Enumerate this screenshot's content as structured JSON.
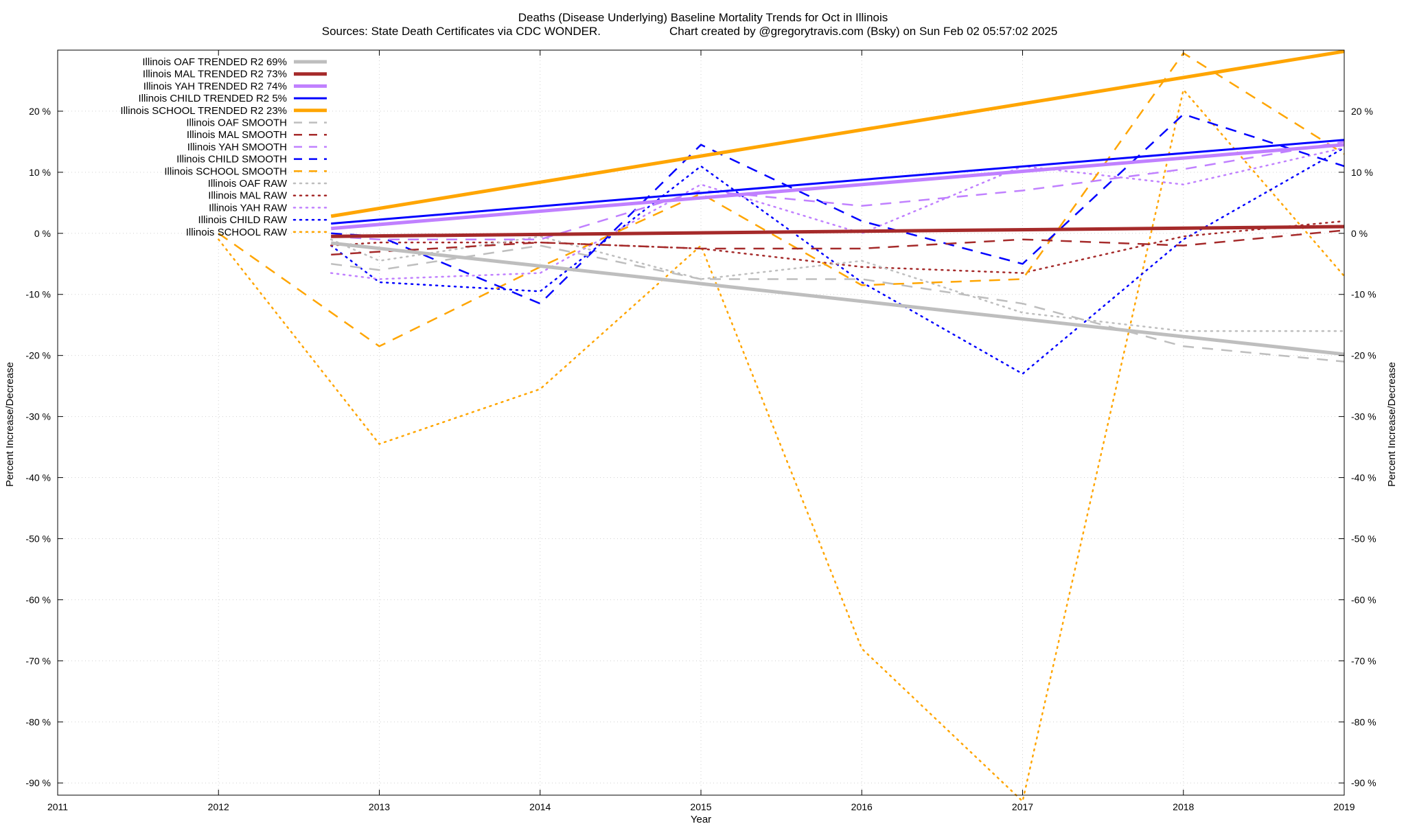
{
  "chart_data": {
    "type": "line",
    "title": "Deaths (Disease Underlying)  Baseline Mortality Trends for Oct in Illinois",
    "subtitle_left": "Sources: State Death Certificates via CDC WONDER.",
    "subtitle_right": "Chart created by @gregorytravis.com (Bsky) on Sun Feb 02 05:57:02 2025",
    "xlabel": "Year",
    "ylabel": "Percent Increase/Decrease",
    "ylabel_right": "Percent Increase/Decrease",
    "xlim": [
      2011,
      2019
    ],
    "ylim": [
      -92,
      30
    ],
    "x_ticks": [
      "2011",
      "2012",
      "2013",
      "2014",
      "2015",
      "2016",
      "2017",
      "2018",
      "2019"
    ],
    "y_ticks": [
      "20 %",
      "10 %",
      "0 %",
      "-10 %",
      "-20 %",
      "-30 %",
      "-40 %",
      "-50 %",
      "-60 %",
      "-70 %",
      "-80 %",
      "-90 %"
    ],
    "legend_position": "top-left",
    "series": [
      {
        "name": "Illinois OAF TRENDED R2  69%",
        "color": "#bebebe",
        "style": "solid",
        "width": 5,
        "x": [
          2012.7,
          2019
        ],
        "values": [
          -1.6,
          -19.8
        ]
      },
      {
        "name": "Illinois MAL TRENDED R2  73%",
        "color": "#a52a2a",
        "style": "solid",
        "width": 5,
        "x": [
          2012.7,
          2019
        ],
        "values": [
          -0.5,
          1.1
        ]
      },
      {
        "name": "Illinois YAH TRENDED R2  74%",
        "color": "#c080ff",
        "style": "solid",
        "width": 5,
        "x": [
          2012.7,
          2019
        ],
        "values": [
          0.8,
          14.5
        ]
      },
      {
        "name": "Illinois CHILD TRENDED R2   5%",
        "color": "#0000ff",
        "style": "solid",
        "width": 3,
        "x": [
          2012.7,
          2019
        ],
        "values": [
          1.6,
          15.3
        ]
      },
      {
        "name": "Illinois SCHOOL TRENDED R2  23%",
        "color": "#ffa500",
        "style": "solid",
        "width": 5,
        "x": [
          2012.7,
          2019
        ],
        "values": [
          2.8,
          29.8
        ]
      },
      {
        "name": "Illinois OAF SMOOTH",
        "color": "#bebebe",
        "style": "dashed",
        "width": 2.5,
        "x": [
          2012.7,
          2013,
          2014,
          2015,
          2016,
          2017,
          2018,
          2019
        ],
        "values": [
          -5.0,
          -6.0,
          -2.0,
          -7.5,
          -7.5,
          -11.5,
          -18.5,
          -21.0
        ]
      },
      {
        "name": "Illinois MAL SMOOTH",
        "color": "#a52a2a",
        "style": "dashed",
        "width": 2.5,
        "x": [
          2012.7,
          2013,
          2014,
          2015,
          2016,
          2017,
          2018,
          2019
        ],
        "values": [
          -3.5,
          -3.0,
          -1.5,
          -2.5,
          -2.5,
          -1.0,
          -2.0,
          0.5
        ]
      },
      {
        "name": "Illinois YAH SMOOTH",
        "color": "#c080ff",
        "style": "dashed",
        "width": 2.5,
        "x": [
          2012.7,
          2013,
          2014,
          2015,
          2016,
          2017,
          2018,
          2019
        ],
        "values": [
          -0.5,
          -1.0,
          -1.0,
          7.0,
          4.5,
          7.0,
          10.5,
          15.0
        ]
      },
      {
        "name": "Illinois CHILD SMOOTH",
        "color": "#0000ff",
        "style": "dashed",
        "width": 2.5,
        "x": [
          2012.7,
          2013,
          2014,
          2015,
          2016,
          2017,
          2018,
          2019
        ],
        "values": [
          0.0,
          -0.5,
          -11.5,
          14.5,
          2.0,
          -5.0,
          19.5,
          11.0
        ]
      },
      {
        "name": "Illinois SCHOOL SMOOTH",
        "color": "#ffa500",
        "style": "dashed",
        "width": 2.5,
        "x": [
          2012,
          2013,
          2014,
          2015,
          2016,
          2017,
          2018,
          2019
        ],
        "values": [
          0.0,
          -18.5,
          -5.5,
          6.5,
          -8.5,
          -7.5,
          29.5,
          13.0
        ]
      },
      {
        "name": "Illinois OAF RAW",
        "color": "#bebebe",
        "style": "dotted",
        "width": 2.5,
        "x": [
          2012.7,
          2013,
          2014,
          2015,
          2016,
          2017,
          2018,
          2019
        ],
        "values": [
          -1.0,
          -4.5,
          -0.5,
          -7.5,
          -4.5,
          -13.0,
          -16.0,
          -16.0
        ]
      },
      {
        "name": "Illinois MAL RAW",
        "color": "#a52a2a",
        "style": "dotted",
        "width": 2.5,
        "x": [
          2012.7,
          2013,
          2014,
          2015,
          2016,
          2017,
          2018,
          2019
        ],
        "values": [
          -2.0,
          -1.5,
          -1.5,
          -2.5,
          -5.5,
          -6.5,
          -0.5,
          2.0
        ]
      },
      {
        "name": "Illinois YAH RAW",
        "color": "#c080ff",
        "style": "dotted",
        "width": 2.5,
        "x": [
          2012.7,
          2013,
          2014,
          2015,
          2016,
          2017,
          2018,
          2019
        ],
        "values": [
          -6.5,
          -7.5,
          -6.5,
          8.0,
          0.0,
          11.0,
          8.0,
          14.0
        ]
      },
      {
        "name": "Illinois CHILD RAW",
        "color": "#0000ff",
        "style": "dotted",
        "width": 2.5,
        "x": [
          2012.7,
          2013,
          2014,
          2015,
          2016,
          2017,
          2018,
          2019
        ],
        "values": [
          -2.0,
          -8.0,
          -9.5,
          11.0,
          -8.0,
          -23.0,
          -1.0,
          14.0
        ]
      },
      {
        "name": "Illinois SCHOOL RAW",
        "color": "#ffa500",
        "style": "dotted",
        "width": 2.5,
        "x": [
          2012,
          2013,
          2014,
          2015,
          2016,
          2017,
          2018,
          2019
        ],
        "values": [
          -1.0,
          -34.5,
          -25.5,
          -2.0,
          -68.0,
          -93.0,
          23.5,
          -7.0
        ]
      }
    ]
  }
}
